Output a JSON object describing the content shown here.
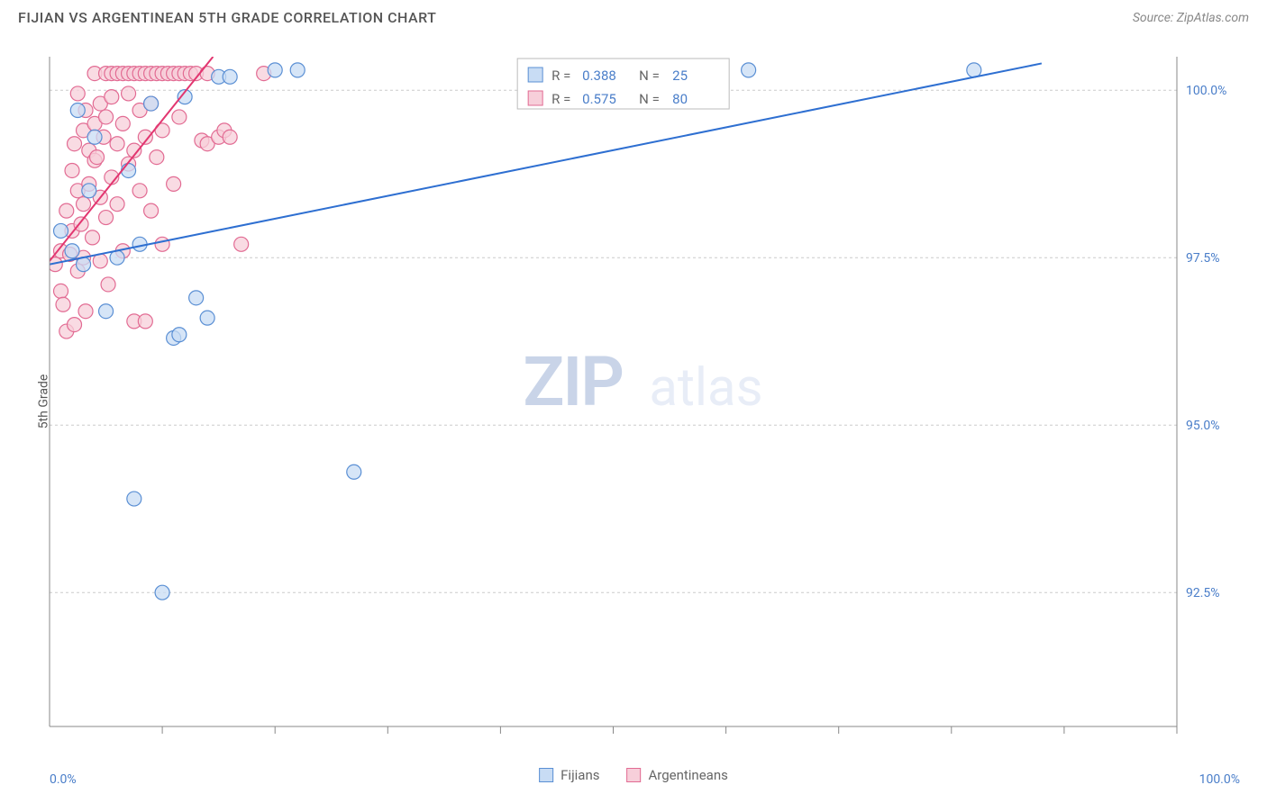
{
  "header": {
    "title": "FIJIAN VS ARGENTINEAN 5TH GRADE CORRELATION CHART",
    "source": "Source: ZipAtlas.com"
  },
  "chart": {
    "type": "scatter",
    "ylabel": "5th Grade",
    "background_color": "#ffffff",
    "grid_color": "#cccccc",
    "axis_color": "#888888",
    "xlim": [
      0,
      100
    ],
    "ylim": [
      90.5,
      100.5
    ],
    "xtick_label_min": "0.0%",
    "xtick_label_max": "100.0%",
    "yticks": [
      {
        "v": 92.5,
        "label": "92.5%"
      },
      {
        "v": 95.0,
        "label": "95.0%"
      },
      {
        "v": 97.5,
        "label": "97.5%"
      },
      {
        "v": 100.0,
        "label": "100.0%"
      }
    ],
    "xticks_minor": [
      10,
      20,
      30,
      40,
      50,
      60,
      70,
      80,
      90,
      100
    ],
    "watermark": {
      "zip": "ZIP",
      "atlas": "atlas",
      "zip_color": "#c9d4e8",
      "atlas_color": "#e8edf7"
    },
    "series": [
      {
        "key": "fijians",
        "label": "Fijians",
        "marker_fill": "#c8dcf4",
        "marker_stroke": "#5a8fd4",
        "marker_r": 8,
        "line_color": "#2e6fd1",
        "line_width": 2,
        "R": "0.388",
        "N": "25",
        "trend": {
          "x1": 0,
          "y1": 97.4,
          "x2": 88,
          "y2": 100.4
        },
        "points": [
          {
            "x": 1,
            "y": 97.9
          },
          {
            "x": 2,
            "y": 97.6
          },
          {
            "x": 2.5,
            "y": 99.7
          },
          {
            "x": 3,
            "y": 97.4
          },
          {
            "x": 3.5,
            "y": 98.5
          },
          {
            "x": 4,
            "y": 99.3
          },
          {
            "x": 5,
            "y": 96.7
          },
          {
            "x": 6,
            "y": 97.5
          },
          {
            "x": 7,
            "y": 98.8
          },
          {
            "x": 7.5,
            "y": 93.9
          },
          {
            "x": 8,
            "y": 97.7
          },
          {
            "x": 9,
            "y": 99.8
          },
          {
            "x": 10,
            "y": 92.5
          },
          {
            "x": 11,
            "y": 96.3
          },
          {
            "x": 11.5,
            "y": 96.35
          },
          {
            "x": 12,
            "y": 99.9
          },
          {
            "x": 13,
            "y": 96.9
          },
          {
            "x": 14,
            "y": 96.6
          },
          {
            "x": 15,
            "y": 100.2
          },
          {
            "x": 16,
            "y": 100.2
          },
          {
            "x": 20,
            "y": 100.3
          },
          {
            "x": 22,
            "y": 100.3
          },
          {
            "x": 27,
            "y": 94.3
          },
          {
            "x": 62,
            "y": 100.3
          },
          {
            "x": 82,
            "y": 100.3
          }
        ]
      },
      {
        "key": "argentineans",
        "label": "Argentineans",
        "marker_fill": "#f7cfda",
        "marker_stroke": "#e26b93",
        "marker_r": 8,
        "line_color": "#e23670",
        "line_width": 2,
        "R": "0.575",
        "N": "80",
        "trend": {
          "x1": 0,
          "y1": 97.45,
          "x2": 14.5,
          "y2": 100.5
        },
        "points": [
          {
            "x": 0.5,
            "y": 97.4
          },
          {
            "x": 1,
            "y": 97.0
          },
          {
            "x": 1,
            "y": 97.6
          },
          {
            "x": 1.2,
            "y": 96.8
          },
          {
            "x": 1.5,
            "y": 98.2
          },
          {
            "x": 1.5,
            "y": 96.4
          },
          {
            "x": 1.8,
            "y": 97.55
          },
          {
            "x": 2,
            "y": 98.8
          },
          {
            "x": 2,
            "y": 97.9
          },
          {
            "x": 2.2,
            "y": 96.5
          },
          {
            "x": 2.2,
            "y": 99.2
          },
          {
            "x": 2.5,
            "y": 98.5
          },
          {
            "x": 2.5,
            "y": 97.3
          },
          {
            "x": 2.5,
            "y": 99.95
          },
          {
            "x": 2.8,
            "y": 98.0
          },
          {
            "x": 3,
            "y": 99.4
          },
          {
            "x": 3,
            "y": 98.3
          },
          {
            "x": 3,
            "y": 97.5
          },
          {
            "x": 3.2,
            "y": 99.7
          },
          {
            "x": 3.2,
            "y": 96.7
          },
          {
            "x": 3.5,
            "y": 98.6
          },
          {
            "x": 3.5,
            "y": 99.1
          },
          {
            "x": 3.8,
            "y": 97.8
          },
          {
            "x": 4,
            "y": 99.5
          },
          {
            "x": 4,
            "y": 98.95
          },
          {
            "x": 4,
            "y": 100.25
          },
          {
            "x": 4.2,
            "y": 99.0
          },
          {
            "x": 4.5,
            "y": 98.4
          },
          {
            "x": 4.5,
            "y": 99.8
          },
          {
            "x": 4.5,
            "y": 97.45
          },
          {
            "x": 4.8,
            "y": 99.3
          },
          {
            "x": 5,
            "y": 98.1
          },
          {
            "x": 5,
            "y": 99.6
          },
          {
            "x": 5,
            "y": 100.25
          },
          {
            "x": 5.2,
            "y": 97.1
          },
          {
            "x": 5.5,
            "y": 98.7
          },
          {
            "x": 5.5,
            "y": 99.9
          },
          {
            "x": 5.5,
            "y": 100.25
          },
          {
            "x": 6,
            "y": 99.2
          },
          {
            "x": 6,
            "y": 98.3
          },
          {
            "x": 6,
            "y": 100.25
          },
          {
            "x": 6.5,
            "y": 99.5
          },
          {
            "x": 6.5,
            "y": 97.6
          },
          {
            "x": 6.5,
            "y": 100.25
          },
          {
            "x": 7,
            "y": 98.9
          },
          {
            "x": 7,
            "y": 99.95
          },
          {
            "x": 7,
            "y": 100.25
          },
          {
            "x": 7.5,
            "y": 99.1
          },
          {
            "x": 7.5,
            "y": 100.25
          },
          {
            "x": 7.5,
            "y": 96.55
          },
          {
            "x": 8,
            "y": 98.5
          },
          {
            "x": 8,
            "y": 99.7
          },
          {
            "x": 8,
            "y": 100.25
          },
          {
            "x": 8.5,
            "y": 99.3
          },
          {
            "x": 8.5,
            "y": 100.25
          },
          {
            "x": 8.5,
            "y": 96.55
          },
          {
            "x": 9,
            "y": 98.2
          },
          {
            "x": 9,
            "y": 99.8
          },
          {
            "x": 9,
            "y": 100.25
          },
          {
            "x": 9.5,
            "y": 99.0
          },
          {
            "x": 9.5,
            "y": 100.25
          },
          {
            "x": 10,
            "y": 97.7
          },
          {
            "x": 10,
            "y": 99.4
          },
          {
            "x": 10,
            "y": 100.25
          },
          {
            "x": 10.5,
            "y": 100.25
          },
          {
            "x": 11,
            "y": 98.6
          },
          {
            "x": 11,
            "y": 100.25
          },
          {
            "x": 11.5,
            "y": 99.6
          },
          {
            "x": 11.5,
            "y": 100.25
          },
          {
            "x": 12,
            "y": 100.25
          },
          {
            "x": 12.5,
            "y": 100.25
          },
          {
            "x": 13,
            "y": 100.25
          },
          {
            "x": 13.5,
            "y": 99.25
          },
          {
            "x": 14,
            "y": 100.25
          },
          {
            "x": 14,
            "y": 99.2
          },
          {
            "x": 15,
            "y": 99.3
          },
          {
            "x": 15.5,
            "y": 99.4
          },
          {
            "x": 16,
            "y": 99.3
          },
          {
            "x": 17,
            "y": 97.7
          },
          {
            "x": 19,
            "y": 100.25
          }
        ]
      }
    ]
  },
  "legend_panel": {
    "r_label": "R =",
    "n_label": "N ="
  },
  "bottom_legend": {
    "items": [
      {
        "label": "Fijians",
        "fill": "#c8dcf4",
        "stroke": "#5a8fd4"
      },
      {
        "label": "Argentineans",
        "fill": "#f7cfda",
        "stroke": "#e26b93"
      }
    ]
  }
}
